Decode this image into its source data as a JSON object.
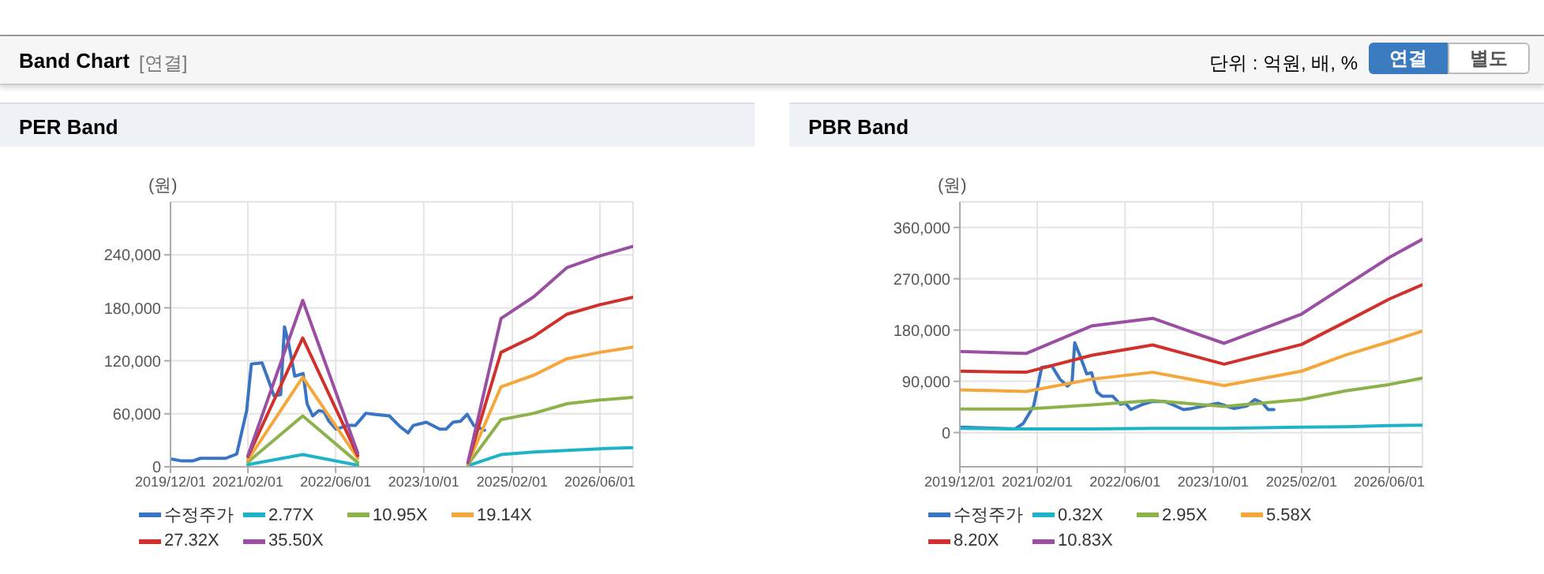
{
  "chart_data": [
    {
      "type": "other",
      "title": "Band Chart",
      "annotations": [
        "[연결]",
        "단위 : 억원, 배, %",
        "연결",
        "별도"
      ]
    },
    {
      "type": "line",
      "title": "PER Band",
      "ylabel": "(원)",
      "xlim": [
        "2019-12-01",
        "2026-12-01"
      ],
      "xticks": [
        {
          "value": "2019-12-01",
          "label": "2019/12/01"
        },
        {
          "value": "2021-02-01",
          "label": "2021/02/01"
        },
        {
          "value": "2022-06-01",
          "label": "2022/06/01"
        },
        {
          "value": "2023-10-01",
          "label": "2023/10/01"
        },
        {
          "value": "2025-02-01",
          "label": "2025/02/01"
        },
        {
          "value": "2026-06-01",
          "label": "2026/06/01"
        }
      ],
      "ylim": [
        0,
        300000
      ],
      "yticks": [
        0,
        {
          "value": 60000,
          "label": "60,000"
        },
        {
          "value": 120000,
          "label": "120,000"
        },
        {
          "value": 180000,
          "label": "180,000"
        },
        {
          "value": 240000,
          "label": "240,000"
        }
      ],
      "grid": true,
      "legend": "bottom",
      "x": [
        "2021-02-01",
        "2021-12-01",
        "2022-10-01",
        "2023-06-01",
        "2024-06-01",
        "2024-12-01",
        "2025-06-01",
        "2025-12-01",
        "2026-06-01",
        "2026-12-01"
      ],
      "series": [
        {
          "name": "수정주가",
          "color": "#3a75c4",
          "x": [
            "2019-12-01",
            "2020-02-01",
            "2020-04-01",
            "2020-05-15",
            "2020-10-01",
            "2020-12-01",
            "2021-01-25",
            "2021-02-20",
            "2021-04-20",
            "2021-05-28",
            "2021-06-25",
            "2021-08-01",
            "2021-08-22",
            "2021-09-12",
            "2021-10-18",
            "2021-12-03",
            "2021-12-25",
            "2022-01-25",
            "2022-02-28",
            "2022-03-28",
            "2022-04-25",
            "2022-06-03",
            "2022-08-06",
            "2022-09-18",
            "2022-11-15",
            "2023-01-01",
            "2023-03-25",
            "2023-05-22",
            "2023-07-06",
            "2023-08-04",
            "2023-10-15",
            "2023-12-28",
            "2024-02-01",
            "2024-03-10",
            "2024-04-22",
            "2024-05-28",
            "2024-07-03",
            "2024-09-01"
          ],
          "values": [
            9000,
            6600,
            6600,
            9600,
            9600,
            14400,
            63600,
            116400,
            117600,
            96600,
            80400,
            81600,
            158400,
            141600,
            102600,
            105600,
            71400,
            57600,
            63600,
            62400,
            51600,
            42600,
            46800,
            46800,
            60600,
            59400,
            57600,
            45600,
            38400,
            46800,
            50400,
            42600,
            42600,
            50400,
            51600,
            59400,
            46800,
            41400
          ]
        },
        {
          "name": "2.77X",
          "color": "#1fb3c8",
          "values": [
            2400,
            13800,
            1800,
            null,
            1200,
            13800,
            16800,
            18600,
            20400,
            21600
          ]
        },
        {
          "name": "10.95X",
          "color": "#8db24b",
          "values": [
            5400,
            57600,
            4800,
            null,
            2400,
            53400,
            60600,
            71400,
            75600,
            78600
          ]
        },
        {
          "name": "19.14X",
          "color": "#f4a73a",
          "values": [
            7800,
            101400,
            9600,
            null,
            3600,
            90600,
            103800,
            122400,
            129600,
            135600
          ]
        },
        {
          "name": "27.32X",
          "color": "#d0312d",
          "values": [
            11400,
            145800,
            12600,
            null,
            4800,
            129600,
            147600,
            172800,
            183600,
            192000
          ]
        },
        {
          "name": "35.50X",
          "color": "#9a4fa3",
          "values": [
            12600,
            188400,
            15600,
            null,
            4800,
            168000,
            192600,
            225600,
            238800,
            249600
          ]
        }
      ]
    },
    {
      "type": "line",
      "title": "PBR Band",
      "ylabel": "(원)",
      "xlim": [
        "2019-12-01",
        "2026-12-01"
      ],
      "xticks": [
        {
          "value": "2019-12-01",
          "label": "2019/12/01"
        },
        {
          "value": "2021-02-01",
          "label": "2021/02/01"
        },
        {
          "value": "2022-06-01",
          "label": "2022/06/01"
        },
        {
          "value": "2023-10-01",
          "label": "2023/10/01"
        },
        {
          "value": "2025-02-01",
          "label": "2025/02/01"
        },
        {
          "value": "2026-06-01",
          "label": "2026/06/01"
        }
      ],
      "ylim": [
        -60000,
        405000
      ],
      "yticks": [
        0,
        {
          "value": 90000,
          "label": "90,000"
        },
        {
          "value": 180000,
          "label": "180,000"
        },
        {
          "value": 270000,
          "label": "270,000"
        },
        {
          "value": 360000,
          "label": "360,000"
        }
      ],
      "grid": true,
      "legend": "bottom",
      "x": [
        "2019-12-01",
        "2020-12-01",
        "2021-12-01",
        "2022-11-01",
        "2023-12-01",
        "2025-02-01",
        "2025-10-01",
        "2026-06-01",
        "2026-12-01"
      ],
      "series": [
        {
          "name": "수정주가",
          "color": "#3a75c4",
          "x": [
            "2019-12-01",
            "2020-10-01",
            "2020-11-15",
            "2021-01-12",
            "2021-02-25",
            "2021-04-22",
            "2021-06-06",
            "2021-07-18",
            "2021-08-12",
            "2021-08-27",
            "2021-09-24",
            "2021-11-01",
            "2021-11-28",
            "2021-12-28",
            "2022-01-25",
            "2022-03-25",
            "2022-05-06",
            "2022-06-03",
            "2022-07-03",
            "2022-09-01",
            "2022-10-28",
            "2023-01-10",
            "2023-03-06",
            "2023-04-20",
            "2023-06-03",
            "2023-08-15",
            "2023-10-27",
            "2023-12-10",
            "2024-01-25",
            "2024-04-06",
            "2024-05-18",
            "2024-07-01",
            "2024-07-31",
            "2024-09-01"
          ],
          "values": [
            9400,
            6600,
            15900,
            46900,
            114400,
            117200,
            93800,
            81600,
            89100,
            157500,
            135900,
            103100,
            105000,
            71300,
            63800,
            63800,
            49700,
            51600,
            40300,
            48800,
            54400,
            54400,
            46900,
            40300,
            42200,
            46900,
            51600,
            46900,
            42200,
            46900,
            58100,
            51600,
            40300,
            40300
          ]
        },
        {
          "name": "0.32X",
          "color": "#1fb3c8",
          "values": [
            7500,
            6600,
            6600,
            7500,
            7500,
            9400,
            10300,
            12200,
            13100
          ]
        },
        {
          "name": "2.95X",
          "color": "#8db24b",
          "values": [
            41300,
            41300,
            48800,
            56300,
            45900,
            58100,
            73100,
            84400,
            95600
          ]
        },
        {
          "name": "5.58X",
          "color": "#f4a73a",
          "values": [
            75000,
            72200,
            93800,
            105900,
            82500,
            107800,
            135900,
            159400,
            178100
          ]
        },
        {
          "name": "8.20X",
          "color": "#d0312d",
          "values": [
            107800,
            105900,
            135900,
            153800,
            120000,
            154700,
            194100,
            234400,
            259700
          ]
        },
        {
          "name": "10.83X",
          "color": "#9a4fa3",
          "values": [
            142500,
            138800,
            187500,
            200600,
            156600,
            208100,
            257800,
            307500,
            339400
          ]
        }
      ]
    }
  ]
}
